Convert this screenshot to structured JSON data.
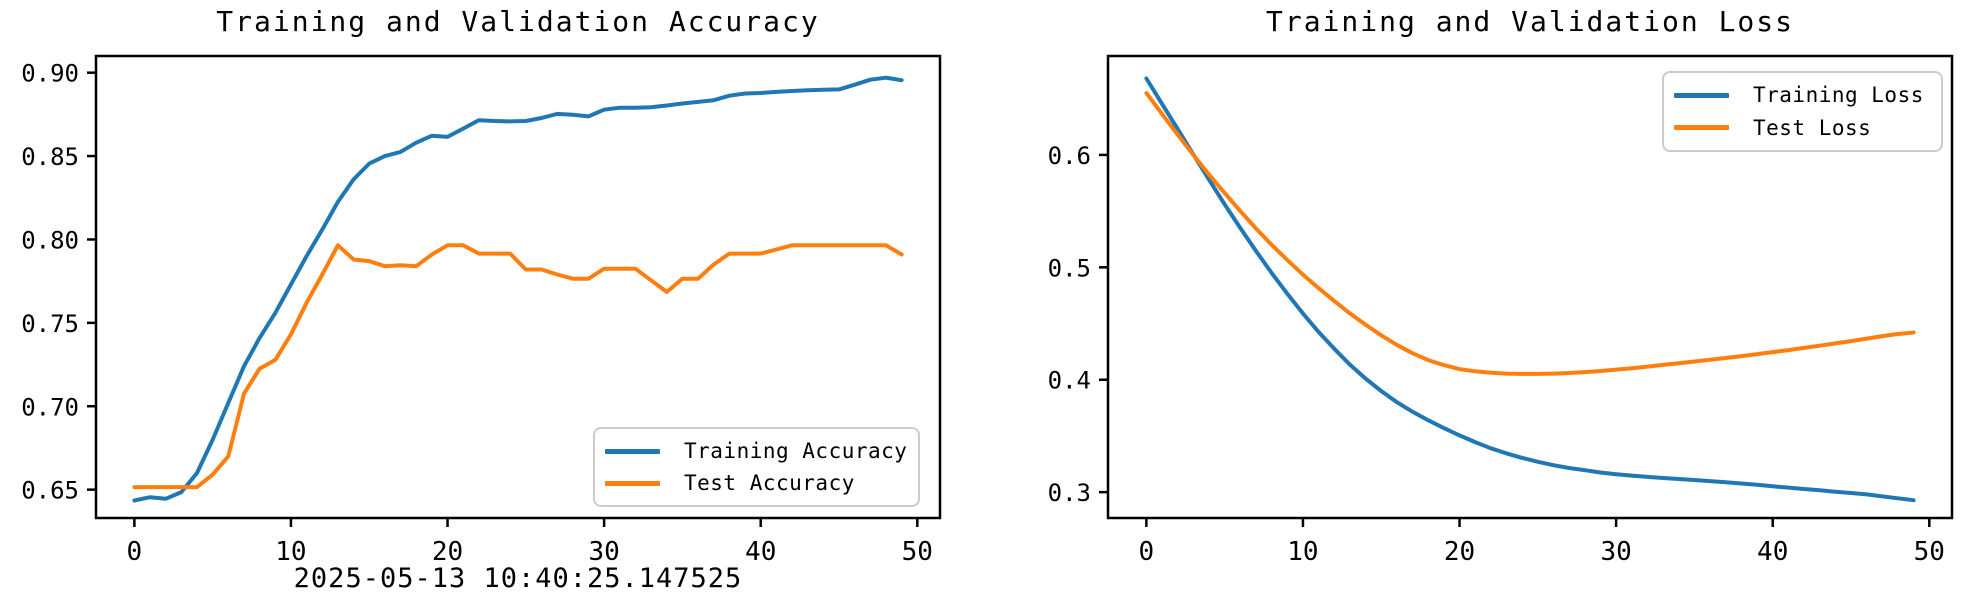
{
  "colors": {
    "train": "#1f77b4",
    "test": "#ff7f0e",
    "axis": "#000000",
    "legend_border": "#cccccc",
    "background": "#ffffff"
  },
  "timestamp_label": "2025-05-13 10:40:25.147525",
  "chart_data": [
    {
      "type": "line",
      "title": "Training and Validation Accuracy",
      "xlabel": "2025-05-13 10:40:25.147525",
      "ylabel": "",
      "xlim": [
        -2.45,
        51.45
      ],
      "ylim": [
        0.633,
        0.91
      ],
      "x_ticks": [
        0,
        10,
        20,
        30,
        40,
        50
      ],
      "x_tick_labels": [
        "0",
        "10",
        "20",
        "30",
        "40",
        "50"
      ],
      "y_ticks": [
        0.65,
        0.7,
        0.75,
        0.8,
        0.85,
        0.9
      ],
      "y_tick_labels": [
        "0.65",
        "0.70",
        "0.75",
        "0.80",
        "0.85",
        "0.90"
      ],
      "grid": false,
      "legend_position": "lower right",
      "x": [
        0,
        1,
        2,
        3,
        4,
        5,
        6,
        7,
        8,
        9,
        10,
        11,
        12,
        13,
        14,
        15,
        16,
        17,
        18,
        19,
        20,
        21,
        22,
        23,
        24,
        25,
        26,
        27,
        28,
        29,
        30,
        31,
        32,
        33,
        34,
        35,
        36,
        37,
        38,
        39,
        40,
        41,
        42,
        43,
        44,
        45,
        46,
        47,
        48,
        49
      ],
      "series": [
        {
          "name": "Training Accuracy",
          "color": "#1f77b4",
          "values": [
            0.6435,
            0.6455,
            0.6445,
            0.6485,
            0.66,
            0.68,
            0.702,
            0.724,
            0.741,
            0.756,
            0.773,
            0.79,
            0.806,
            0.8225,
            0.836,
            0.8455,
            0.85,
            0.8525,
            0.858,
            0.8622,
            0.8615,
            0.8665,
            0.8715,
            0.871,
            0.8708,
            0.871,
            0.8728,
            0.8753,
            0.8748,
            0.8738,
            0.8778,
            0.879,
            0.879,
            0.8793,
            0.8803,
            0.8815,
            0.8825,
            0.8835,
            0.8862,
            0.8875,
            0.8878,
            0.8885,
            0.889,
            0.8895,
            0.8898,
            0.89,
            0.8928,
            0.8958,
            0.897,
            0.8955
          ]
        },
        {
          "name": "Test Accuracy",
          "color": "#ff7f0e",
          "values": [
            0.6515,
            0.6515,
            0.6515,
            0.6515,
            0.6515,
            0.659,
            0.67,
            0.7075,
            0.7225,
            0.7278,
            0.743,
            0.762,
            0.779,
            0.7965,
            0.788,
            0.787,
            0.784,
            0.7845,
            0.784,
            0.791,
            0.7965,
            0.7965,
            0.7915,
            0.7915,
            0.7915,
            0.782,
            0.782,
            0.779,
            0.7765,
            0.7765,
            0.7825,
            0.7825,
            0.7825,
            0.7755,
            0.7685,
            0.7765,
            0.7765,
            0.785,
            0.7915,
            0.7915,
            0.7915,
            0.794,
            0.7965,
            0.7965,
            0.7965,
            0.7965,
            0.7965,
            0.7965,
            0.7965,
            0.791
          ]
        }
      ]
    },
    {
      "type": "line",
      "title": "Training and Validation Loss",
      "xlabel": "",
      "ylabel": "",
      "xlim": [
        -2.45,
        51.45
      ],
      "ylim": [
        0.277,
        0.688
      ],
      "x_ticks": [
        0,
        10,
        20,
        30,
        40,
        50
      ],
      "x_tick_labels": [
        "0",
        "10",
        "20",
        "30",
        "40",
        "50"
      ],
      "y_ticks": [
        0.3,
        0.4,
        0.5,
        0.6
      ],
      "y_tick_labels": [
        "0.3",
        "0.4",
        "0.5",
        "0.6"
      ],
      "grid": false,
      "legend_position": "upper right",
      "x": [
        0,
        1,
        2,
        3,
        4,
        5,
        6,
        7,
        8,
        9,
        10,
        11,
        12,
        13,
        14,
        15,
        16,
        17,
        18,
        19,
        20,
        21,
        22,
        23,
        24,
        25,
        26,
        27,
        28,
        29,
        30,
        31,
        32,
        33,
        34,
        35,
        36,
        37,
        38,
        39,
        40,
        41,
        42,
        43,
        44,
        45,
        46,
        47,
        48,
        49
      ],
      "series": [
        {
          "name": "Training Loss",
          "color": "#1f77b4",
          "values": [
            0.668,
            0.6455,
            0.623,
            0.6005,
            0.578,
            0.556,
            0.535,
            0.5145,
            0.495,
            0.4765,
            0.459,
            0.4425,
            0.4275,
            0.4135,
            0.401,
            0.39,
            0.38,
            0.3715,
            0.364,
            0.357,
            0.3505,
            0.3445,
            0.339,
            0.3345,
            0.3305,
            0.327,
            0.324,
            0.3215,
            0.3195,
            0.3175,
            0.316,
            0.3147,
            0.3136,
            0.3126,
            0.3117,
            0.3108,
            0.3098,
            0.3088,
            0.3077,
            0.3065,
            0.3052,
            0.304,
            0.3028,
            0.3016,
            0.3004,
            0.2992,
            0.298,
            0.2962,
            0.2945,
            0.2928
          ]
        },
        {
          "name": "Test Loss",
          "color": "#ff7f0e",
          "values": [
            0.655,
            0.6365,
            0.618,
            0.6,
            0.5825,
            0.566,
            0.55,
            0.5345,
            0.52,
            0.5065,
            0.4935,
            0.4815,
            0.47,
            0.459,
            0.449,
            0.4395,
            0.431,
            0.4235,
            0.4175,
            0.413,
            0.4095,
            0.4075,
            0.4062,
            0.4055,
            0.4052,
            0.4052,
            0.4055,
            0.406,
            0.4068,
            0.4078,
            0.409,
            0.4103,
            0.4117,
            0.4132,
            0.4147,
            0.4162,
            0.4177,
            0.4193,
            0.421,
            0.4228,
            0.4246,
            0.4264,
            0.4283,
            0.4303,
            0.4323,
            0.4344,
            0.4366,
            0.4388,
            0.4407,
            0.442
          ]
        }
      ]
    }
  ]
}
